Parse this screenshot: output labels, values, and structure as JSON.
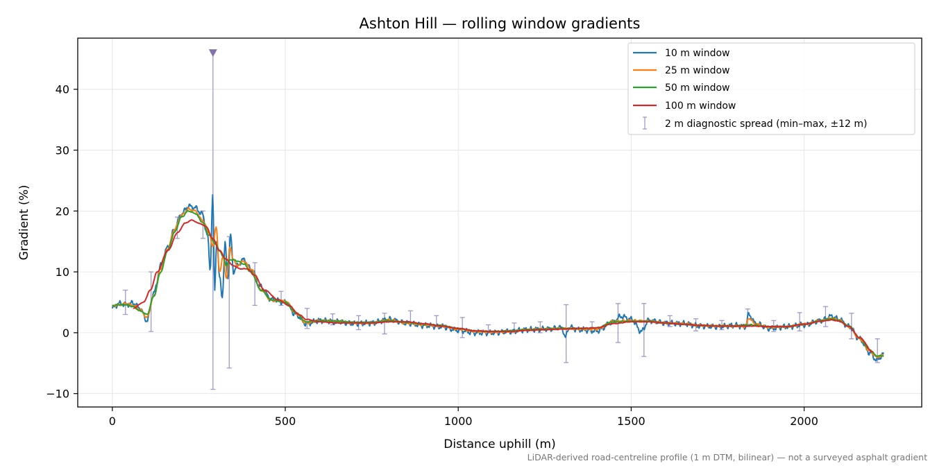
{
  "chart_data": {
    "type": "line",
    "title": "Ashton Hill — rolling window gradients",
    "xlabel": "Distance uphill (m)",
    "ylabel": "Gradient (%)",
    "xlim": [
      -100,
      2340
    ],
    "ylim": [
      -12.2,
      48.4
    ],
    "xticks": [
      0,
      500,
      1000,
      1500,
      2000
    ],
    "yticks": [
      -10,
      0,
      10,
      20,
      30,
      40
    ],
    "grid": true,
    "legend_position": "top-right",
    "footnote": "LiDAR-derived road-centreline profile (1 m DTM, bilinear) — not a surveyed asphalt gradient",
    "series": [
      {
        "name": "10 m window",
        "color": "#1f77b4",
        "noise": 0.5,
        "x": [
          0,
          20,
          40,
          60,
          80,
          100,
          120,
          140,
          160,
          180,
          200,
          220,
          240,
          260,
          275,
          283,
          290,
          296,
          302,
          310,
          318,
          326,
          334,
          342,
          350,
          360,
          380,
          400,
          430,
          460,
          500,
          530,
          560,
          600,
          650,
          700,
          750,
          800,
          850,
          900,
          950,
          1000,
          1050,
          1100,
          1150,
          1200,
          1250,
          1300,
          1310,
          1320,
          1350,
          1400,
          1450,
          1470,
          1500,
          1530,
          1550,
          1600,
          1650,
          1700,
          1750,
          1800,
          1830,
          1840,
          1860,
          1900,
          1950,
          2000,
          2050,
          2080,
          2100,
          2130,
          2160,
          2190,
          2210,
          2230
        ],
        "y": [
          4.0,
          4.8,
          4.6,
          4.9,
          4.0,
          2.0,
          6.5,
          11.0,
          14.0,
          17.0,
          19.5,
          20.8,
          20.5,
          19.5,
          16.0,
          10.5,
          22.5,
          7.0,
          15.5,
          9.0,
          6.0,
          14.5,
          9.0,
          16.0,
          10.0,
          11.0,
          12.0,
          10.5,
          7.5,
          5.5,
          5.0,
          3.0,
          1.5,
          2.0,
          1.8,
          1.5,
          1.6,
          2.2,
          1.6,
          1.2,
          1.0,
          0.4,
          0.0,
          0.0,
          0.2,
          0.5,
          0.6,
          0.8,
          -0.8,
          0.9,
          0.5,
          0.3,
          1.8,
          2.7,
          2.2,
          0.2,
          2.0,
          1.6,
          1.5,
          1.1,
          1.0,
          1.2,
          1.0,
          3.0,
          1.5,
          0.7,
          1.0,
          1.3,
          2.0,
          2.7,
          2.2,
          1.0,
          -1.0,
          -3.3,
          -4.5,
          -3.5
        ]
      },
      {
        "name": "25 m window",
        "color": "#ff7f0e",
        "noise": 0.2,
        "x": [
          0,
          20,
          40,
          60,
          80,
          100,
          120,
          140,
          160,
          180,
          200,
          220,
          240,
          260,
          280,
          290,
          300,
          310,
          320,
          330,
          340,
          350,
          360,
          380,
          400,
          430,
          460,
          500,
          530,
          560,
          600,
          650,
          700,
          750,
          800,
          850,
          900,
          950,
          1000,
          1050,
          1100,
          1150,
          1200,
          1250,
          1300,
          1350,
          1400,
          1450,
          1500,
          1550,
          1600,
          1650,
          1700,
          1750,
          1800,
          1830,
          1840,
          1860,
          1900,
          1950,
          2000,
          2050,
          2080,
          2100,
          2130,
          2160,
          2190,
          2210,
          2230
        ],
        "y": [
          4.4,
          4.6,
          4.8,
          4.5,
          3.8,
          2.5,
          6.0,
          10.5,
          13.8,
          17.0,
          19.3,
          20.3,
          20.0,
          18.5,
          16.5,
          14.0,
          17.5,
          10.0,
          12.5,
          9.0,
          14.0,
          12.0,
          11.0,
          11.8,
          10.5,
          7.0,
          5.3,
          5.2,
          3.2,
          1.6,
          2.0,
          1.9,
          1.6,
          1.6,
          2.1,
          1.6,
          1.3,
          1.1,
          0.6,
          0.2,
          0.1,
          0.2,
          0.5,
          0.6,
          0.7,
          0.6,
          0.6,
          1.9,
          2.0,
          1.9,
          1.6,
          1.5,
          1.2,
          1.1,
          1.1,
          1.0,
          2.4,
          1.4,
          0.9,
          1.0,
          1.4,
          2.0,
          2.4,
          2.1,
          1.0,
          -1.0,
          -3.0,
          -4.0,
          -3.7
        ]
      },
      {
        "name": "50 m window",
        "color": "#2ca02c",
        "noise": 0.1,
        "x": [
          0,
          20,
          40,
          60,
          80,
          100,
          120,
          140,
          160,
          180,
          200,
          220,
          240,
          260,
          280,
          300,
          310,
          320,
          330,
          340,
          350,
          360,
          380,
          400,
          430,
          460,
          500,
          530,
          560,
          600,
          650,
          700,
          750,
          800,
          850,
          900,
          950,
          1000,
          1050,
          1100,
          1150,
          1200,
          1250,
          1300,
          1350,
          1400,
          1450,
          1500,
          1550,
          1600,
          1650,
          1700,
          1750,
          1800,
          1840,
          1900,
          1950,
          2000,
          2050,
          2080,
          2100,
          2130,
          2160,
          2190,
          2210,
          2230
        ],
        "y": [
          4.5,
          4.6,
          4.6,
          4.3,
          3.6,
          3.0,
          6.0,
          10.0,
          13.5,
          16.5,
          19.0,
          20.0,
          19.6,
          18.2,
          16.0,
          14.5,
          13.5,
          12.5,
          11.0,
          12.0,
          12.0,
          11.8,
          11.3,
          10.0,
          7.0,
          5.4,
          5.0,
          3.3,
          1.8,
          2.0,
          1.9,
          1.7,
          1.7,
          2.0,
          1.7,
          1.4,
          1.2,
          0.7,
          0.3,
          0.2,
          0.3,
          0.5,
          0.6,
          0.7,
          0.7,
          0.8,
          1.8,
          1.9,
          1.9,
          1.6,
          1.4,
          1.2,
          1.1,
          1.1,
          1.3,
          1.0,
          1.0,
          1.4,
          2.0,
          2.3,
          2.0,
          1.1,
          -0.8,
          -2.8,
          -3.8,
          -3.8
        ]
      },
      {
        "name": "100 m window",
        "color": "#d62728",
        "noise": 0.05,
        "x": [
          60,
          90,
          110,
          130,
          160,
          190,
          210,
          230,
          250,
          270,
          290,
          310,
          330,
          350,
          370,
          390,
          410,
          440,
          480,
          510,
          540,
          560,
          600,
          650,
          700,
          750,
          800,
          850,
          900,
          950,
          1000,
          1050,
          1100,
          1150,
          1200,
          1250,
          1300,
          1350,
          1400,
          1450,
          1500,
          1550,
          1600,
          1650,
          1700,
          1750,
          1800,
          1850,
          1900,
          1950,
          2000,
          2050,
          2080,
          2100,
          2130,
          2160,
          2200
        ],
        "y": [
          4.0,
          5.0,
          7.0,
          10.0,
          13.5,
          16.5,
          18.0,
          18.5,
          18.0,
          17.5,
          15.5,
          13.5,
          12.0,
          11.0,
          10.5,
          10.5,
          9.5,
          7.0,
          5.4,
          4.5,
          3.0,
          2.2,
          1.8,
          1.6,
          1.6,
          1.6,
          1.8,
          1.8,
          1.5,
          1.1,
          0.7,
          0.3,
          0.2,
          0.2,
          0.4,
          0.5,
          0.6,
          0.7,
          0.8,
          1.5,
          1.8,
          1.8,
          1.6,
          1.4,
          1.2,
          1.1,
          1.1,
          1.1,
          1.0,
          1.0,
          1.4,
          1.9,
          2.1,
          1.9,
          1.0,
          -0.8,
          -3.2
        ]
      }
    ],
    "error_bars": {
      "name": "2 m diagnostic spread (min–max, ±12 m)",
      "color": "#9e9ac8",
      "marker_color": "#8073ac",
      "points": [
        {
          "x": 38,
          "lo": 3.0,
          "hi": 7.0
        },
        {
          "x": 112,
          "lo": 0.2,
          "hi": 10.0
        },
        {
          "x": 188,
          "lo": 15.5,
          "hi": 19.0
        },
        {
          "x": 262,
          "lo": 15.5,
          "hi": 20.0
        },
        {
          "x": 291,
          "lo": -9.3,
          "hi": 46.0,
          "clipped": true
        },
        {
          "x": 338,
          "lo": -5.8,
          "hi": 15.8
        },
        {
          "x": 412,
          "lo": 4.5,
          "hi": 11.5
        },
        {
          "x": 488,
          "lo": 4.5,
          "hi": 6.8
        },
        {
          "x": 563,
          "lo": 0.7,
          "hi": 4.0
        },
        {
          "x": 637,
          "lo": 1.3,
          "hi": 3.1
        },
        {
          "x": 712,
          "lo": 0.5,
          "hi": 2.8
        },
        {
          "x": 787,
          "lo": -0.2,
          "hi": 3.2
        },
        {
          "x": 862,
          "lo": 1.5,
          "hi": 3.6
        },
        {
          "x": 937,
          "lo": 1.0,
          "hi": 2.8
        },
        {
          "x": 1012,
          "lo": -0.8,
          "hi": 2.5
        },
        {
          "x": 1087,
          "lo": 0.0,
          "hi": 1.3
        },
        {
          "x": 1162,
          "lo": 0.0,
          "hi": 1.6
        },
        {
          "x": 1237,
          "lo": 0.0,
          "hi": 1.8
        },
        {
          "x": 1312,
          "lo": -4.9,
          "hi": 4.6
        },
        {
          "x": 1387,
          "lo": 0.2,
          "hi": 1.8
        },
        {
          "x": 1462,
          "lo": -1.6,
          "hi": 4.8
        },
        {
          "x": 1537,
          "lo": -3.9,
          "hi": 4.8
        },
        {
          "x": 1612,
          "lo": 1.0,
          "hi": 2.8
        },
        {
          "x": 1687,
          "lo": 0.3,
          "hi": 2.3
        },
        {
          "x": 1762,
          "lo": 0.5,
          "hi": 2.0
        },
        {
          "x": 1837,
          "lo": 1.0,
          "hi": 3.9
        },
        {
          "x": 1912,
          "lo": 0.2,
          "hi": 2.0
        },
        {
          "x": 1987,
          "lo": 0.3,
          "hi": 3.3
        },
        {
          "x": 2062,
          "lo": 1.0,
          "hi": 4.3
        },
        {
          "x": 2137,
          "lo": -1.0,
          "hi": 3.2
        },
        {
          "x": 2212,
          "lo": -4.9,
          "hi": -1.0
        }
      ]
    }
  }
}
